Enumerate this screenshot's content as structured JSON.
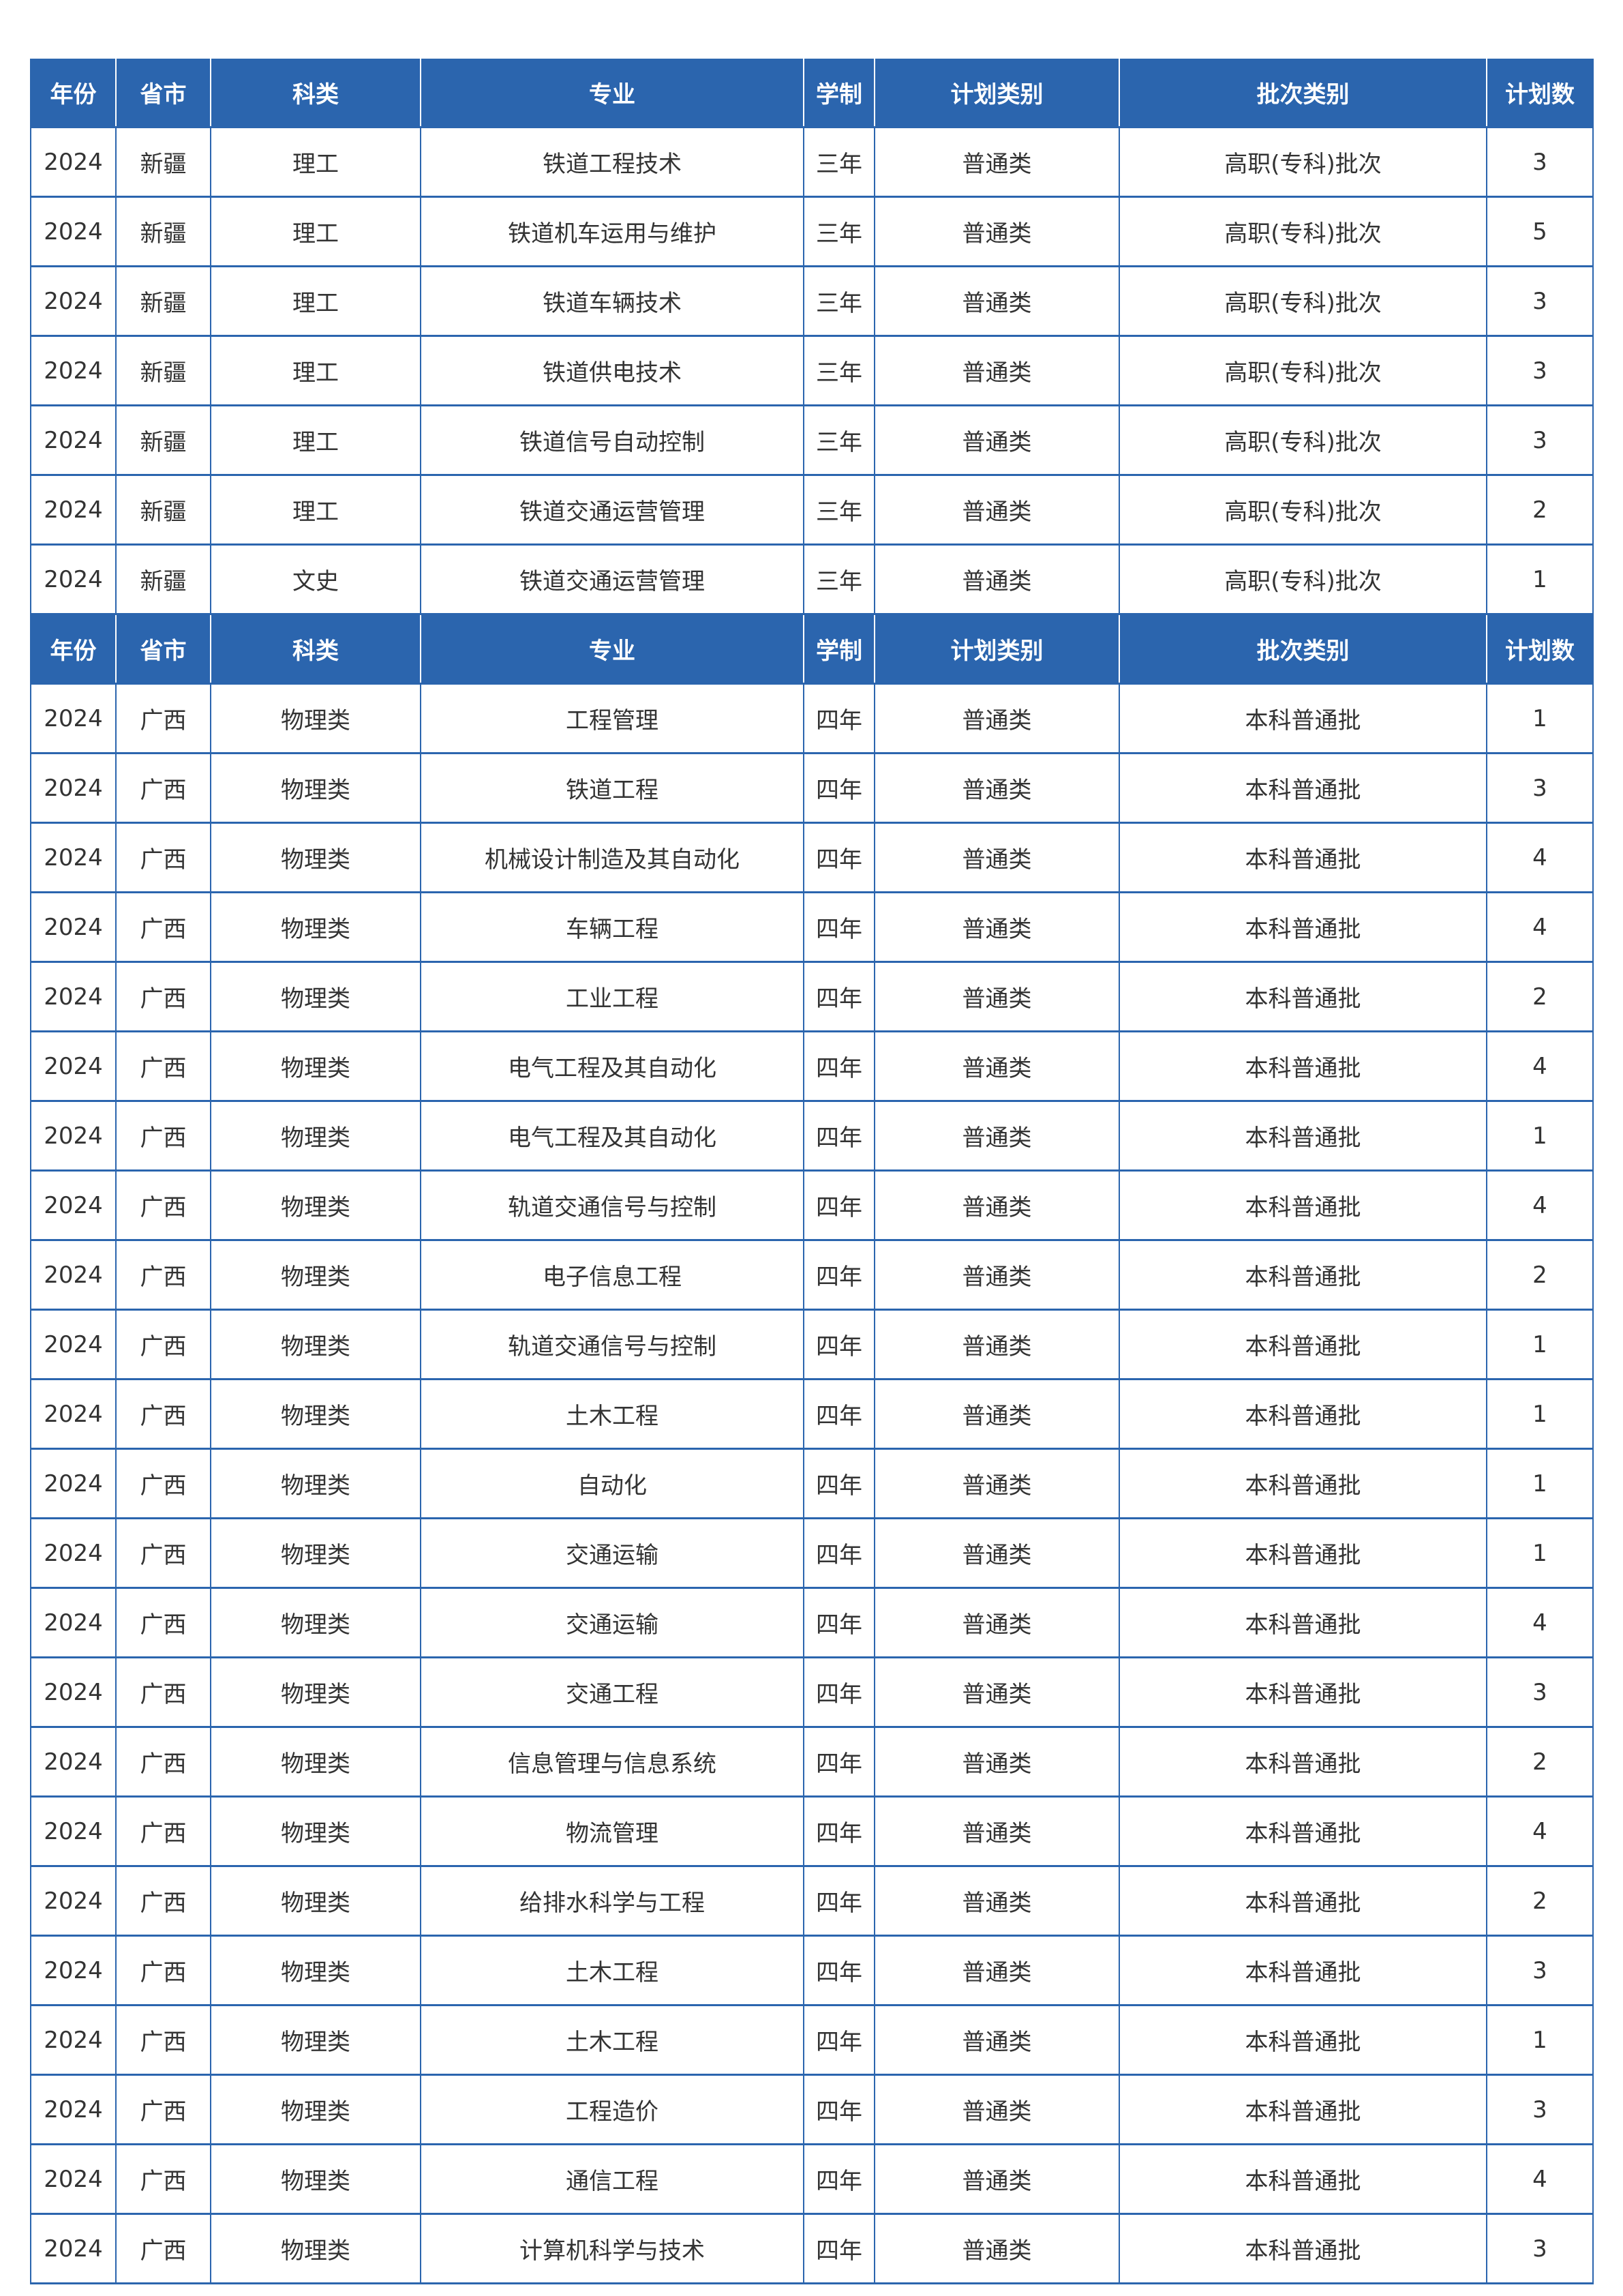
{
  "colors": {
    "header_bg": "#2b65ae",
    "border": "#2b65ae"
  },
  "headers": [
    "年份",
    "省市",
    "科类",
    "专业",
    "学制",
    "计划类别",
    "批次类别",
    "计划数"
  ],
  "sections": [
    {
      "rows": [
        [
          "2024",
          "新疆",
          "理工",
          "铁道工程技术",
          "三年",
          "普通类",
          "高职(专科)批次",
          "3"
        ],
        [
          "2024",
          "新疆",
          "理工",
          "铁道机车运用与维护",
          "三年",
          "普通类",
          "高职(专科)批次",
          "5"
        ],
        [
          "2024",
          "新疆",
          "理工",
          "铁道车辆技术",
          "三年",
          "普通类",
          "高职(专科)批次",
          "3"
        ],
        [
          "2024",
          "新疆",
          "理工",
          "铁道供电技术",
          "三年",
          "普通类",
          "高职(专科)批次",
          "3"
        ],
        [
          "2024",
          "新疆",
          "理工",
          "铁道信号自动控制",
          "三年",
          "普通类",
          "高职(专科)批次",
          "3"
        ],
        [
          "2024",
          "新疆",
          "理工",
          "铁道交通运营管理",
          "三年",
          "普通类",
          "高职(专科)批次",
          "2"
        ],
        [
          "2024",
          "新疆",
          "文史",
          "铁道交通运营管理",
          "三年",
          "普通类",
          "高职(专科)批次",
          "1"
        ]
      ]
    },
    {
      "rows": [
        [
          "2024",
          "广西",
          "物理类",
          "工程管理",
          "四年",
          "普通类",
          "本科普通批",
          "1"
        ],
        [
          "2024",
          "广西",
          "物理类",
          "铁道工程",
          "四年",
          "普通类",
          "本科普通批",
          "3"
        ],
        [
          "2024",
          "广西",
          "物理类",
          "机械设计制造及其自动化",
          "四年",
          "普通类",
          "本科普通批",
          "4"
        ],
        [
          "2024",
          "广西",
          "物理类",
          "车辆工程",
          "四年",
          "普通类",
          "本科普通批",
          "4"
        ],
        [
          "2024",
          "广西",
          "物理类",
          "工业工程",
          "四年",
          "普通类",
          "本科普通批",
          "2"
        ],
        [
          "2024",
          "广西",
          "物理类",
          "电气工程及其自动化",
          "四年",
          "普通类",
          "本科普通批",
          "4"
        ],
        [
          "2024",
          "广西",
          "物理类",
          "电气工程及其自动化",
          "四年",
          "普通类",
          "本科普通批",
          "1"
        ],
        [
          "2024",
          "广西",
          "物理类",
          "轨道交通信号与控制",
          "四年",
          "普通类",
          "本科普通批",
          "4"
        ],
        [
          "2024",
          "广西",
          "物理类",
          "电子信息工程",
          "四年",
          "普通类",
          "本科普通批",
          "2"
        ],
        [
          "2024",
          "广西",
          "物理类",
          "轨道交通信号与控制",
          "四年",
          "普通类",
          "本科普通批",
          "1"
        ],
        [
          "2024",
          "广西",
          "物理类",
          "土木工程",
          "四年",
          "普通类",
          "本科普通批",
          "1"
        ],
        [
          "2024",
          "广西",
          "物理类",
          "自动化",
          "四年",
          "普通类",
          "本科普通批",
          "1"
        ],
        [
          "2024",
          "广西",
          "物理类",
          "交通运输",
          "四年",
          "普通类",
          "本科普通批",
          "1"
        ],
        [
          "2024",
          "广西",
          "物理类",
          "交通运输",
          "四年",
          "普通类",
          "本科普通批",
          "4"
        ],
        [
          "2024",
          "广西",
          "物理类",
          "交通工程",
          "四年",
          "普通类",
          "本科普通批",
          "3"
        ],
        [
          "2024",
          "广西",
          "物理类",
          "信息管理与信息系统",
          "四年",
          "普通类",
          "本科普通批",
          "2"
        ],
        [
          "2024",
          "广西",
          "物理类",
          "物流管理",
          "四年",
          "普通类",
          "本科普通批",
          "4"
        ],
        [
          "2024",
          "广西",
          "物理类",
          "给排水科学与工程",
          "四年",
          "普通类",
          "本科普通批",
          "2"
        ],
        [
          "2024",
          "广西",
          "物理类",
          "土木工程",
          "四年",
          "普通类",
          "本科普通批",
          "3"
        ],
        [
          "2024",
          "广西",
          "物理类",
          "土木工程",
          "四年",
          "普通类",
          "本科普通批",
          "1"
        ],
        [
          "2024",
          "广西",
          "物理类",
          "工程造价",
          "四年",
          "普通类",
          "本科普通批",
          "3"
        ],
        [
          "2024",
          "广西",
          "物理类",
          "通信工程",
          "四年",
          "普通类",
          "本科普通批",
          "4"
        ],
        [
          "2024",
          "广西",
          "物理类",
          "计算机科学与技术",
          "四年",
          "普通类",
          "本科普通批",
          "3"
        ]
      ]
    }
  ]
}
